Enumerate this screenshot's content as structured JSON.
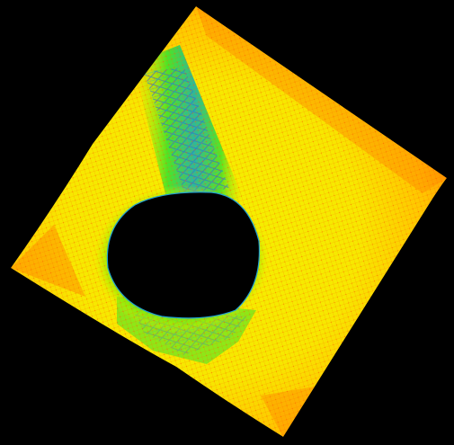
{
  "render": {
    "background": "#000000",
    "colormap": [
      "#2a7fd6",
      "#21c8b0",
      "#39e62a",
      "#b8f000",
      "#ffee00",
      "#ffb400",
      "#ff6a00"
    ],
    "dominant_color": "#ffee00",
    "edge_color": "#ff8a00",
    "hole_color": "#000000"
  }
}
